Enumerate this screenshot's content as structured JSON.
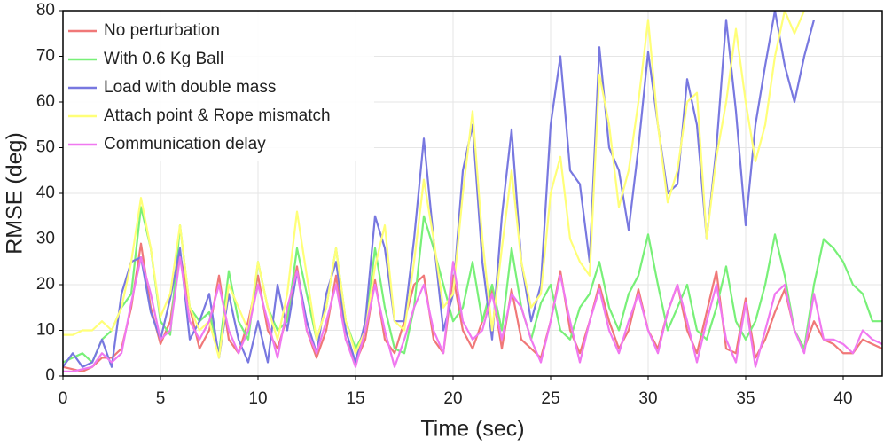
{
  "chart_data": {
    "type": "line",
    "xlabel": "Time (sec)",
    "ylabel": "RMSE (deg)",
    "x": [
      0,
      0.5,
      1,
      1.5,
      2,
      2.5,
      3,
      3.5,
      4,
      4.5,
      5,
      5.5,
      6,
      6.5,
      7,
      7.5,
      8,
      8.5,
      9,
      9.5,
      10,
      10.5,
      11,
      11.5,
      12,
      12.5,
      13,
      13.5,
      14,
      14.5,
      15,
      15.5,
      16,
      16.5,
      17,
      17.5,
      18,
      18.5,
      19,
      19.5,
      20,
      20.5,
      21,
      21.5,
      22,
      22.5,
      23,
      23.5,
      24,
      24.5,
      25,
      25.5,
      26,
      26.5,
      27,
      27.5,
      28,
      28.5,
      29,
      29.5,
      30,
      30.5,
      31,
      31.5,
      32,
      32.5,
      33,
      33.5,
      34,
      34.5,
      35,
      35.5,
      36,
      36.5,
      37,
      37.5,
      38,
      38.5,
      39,
      39.5,
      40,
      40.5,
      41,
      41.5,
      42
    ],
    "series": [
      {
        "name": "No perturbation",
        "color": "#f07878",
        "values": [
          2,
          1.5,
          1,
          2,
          4,
          4,
          6,
          15,
          29,
          15,
          7,
          12,
          27,
          15,
          6,
          10,
          22,
          8,
          5,
          12,
          22,
          10,
          6,
          13,
          24,
          10,
          4,
          10,
          22,
          8,
          3,
          8,
          21,
          8,
          5,
          12,
          20,
          22,
          8,
          5,
          22,
          10,
          6,
          12,
          19,
          6,
          19,
          8,
          6,
          4,
          12,
          23,
          10,
          5,
          12,
          20,
          12,
          6,
          10,
          19,
          10,
          6,
          14,
          20,
          10,
          5,
          14,
          23,
          6,
          5,
          17,
          4,
          8,
          14,
          19,
          10,
          6,
          12,
          8,
          7,
          5,
          5,
          8,
          7,
          6
        ]
      },
      {
        "name": "With 0.6 Kg Ball",
        "color": "#78f078",
        "values": [
          3,
          4,
          5,
          3,
          8,
          10,
          15,
          18,
          37,
          28,
          12,
          9,
          33,
          15,
          12,
          14,
          5,
          23,
          12,
          8,
          25,
          15,
          10,
          12,
          28,
          18,
          8,
          15,
          28,
          12,
          6,
          10,
          28,
          15,
          6,
          5,
          15,
          35,
          28,
          20,
          12,
          15,
          25,
          12,
          20,
          10,
          28,
          15,
          8,
          16,
          20,
          10,
          8,
          15,
          18,
          25,
          15,
          10,
          18,
          22,
          31,
          20,
          10,
          15,
          20,
          10,
          8,
          15,
          24,
          12,
          8,
          12,
          20,
          31,
          22,
          10,
          6,
          20,
          30,
          28,
          25,
          20,
          18,
          12,
          12
        ]
      },
      {
        "name": "Load with double mass",
        "color": "#7878e0",
        "values": [
          2,
          5,
          2,
          3,
          8,
          2,
          18,
          25,
          26,
          14,
          8,
          17,
          28,
          8,
          12,
          18,
          4,
          18,
          8,
          3,
          12,
          3,
          20,
          10,
          23,
          12,
          5,
          18,
          25,
          10,
          3,
          12,
          35,
          28,
          12,
          12,
          30,
          52,
          30,
          10,
          18,
          45,
          55,
          25,
          8,
          35,
          54,
          25,
          12,
          20,
          55,
          70,
          45,
          42,
          25,
          72,
          50,
          45,
          32,
          50,
          71,
          55,
          40,
          42,
          65,
          55,
          30,
          50,
          78,
          58,
          33,
          55,
          68,
          80,
          68,
          60,
          70,
          78,
          null,
          null,
          null,
          null,
          null,
          null,
          null
        ]
      },
      {
        "name": "Attach point & Rope mismatch",
        "color": "#ffff78",
        "values": [
          9,
          9,
          10,
          10,
          12,
          10,
          15,
          25,
          39,
          28,
          13,
          18,
          33,
          15,
          10,
          12,
          4,
          20,
          15,
          10,
          25,
          15,
          8,
          18,
          36,
          22,
          8,
          15,
          28,
          12,
          5,
          10,
          24,
          33,
          12,
          10,
          25,
          43,
          30,
          15,
          18,
          40,
          58,
          30,
          10,
          28,
          45,
          25,
          15,
          18,
          40,
          48,
          30,
          25,
          22,
          66,
          55,
          37,
          45,
          60,
          78,
          55,
          38,
          45,
          60,
          62,
          30,
          48,
          60,
          76,
          60,
          47,
          55,
          70,
          80,
          75,
          80,
          null,
          null,
          null,
          null,
          null,
          null,
          null,
          null
        ]
      },
      {
        "name": "Communication delay",
        "color": "#f078f0",
        "values": [
          1,
          1,
          1.5,
          2,
          5,
          3,
          5,
          16,
          26,
          18,
          8,
          10,
          26,
          12,
          8,
          12,
          20,
          10,
          5,
          10,
          20,
          12,
          4,
          15,
          23,
          10,
          5,
          12,
          20,
          8,
          2,
          10,
          20,
          10,
          2,
          8,
          15,
          20,
          10,
          5,
          25,
          12,
          8,
          10,
          18,
          8,
          18,
          15,
          8,
          3,
          12,
          22,
          12,
          3,
          12,
          19,
          10,
          5,
          12,
          18,
          10,
          5,
          14,
          20,
          12,
          3,
          12,
          20,
          8,
          3,
          16,
          2,
          10,
          18,
          20,
          10,
          5,
          18,
          8,
          8,
          7,
          5,
          10,
          8,
          7
        ]
      }
    ],
    "xlim": [
      0,
      42
    ],
    "ylim": [
      0,
      80
    ],
    "xticks": [
      0,
      5,
      10,
      15,
      20,
      25,
      30,
      35,
      40
    ],
    "yticks": [
      0,
      10,
      20,
      30,
      40,
      50,
      60,
      70,
      80
    ],
    "grid": true,
    "legend": "upper left"
  }
}
